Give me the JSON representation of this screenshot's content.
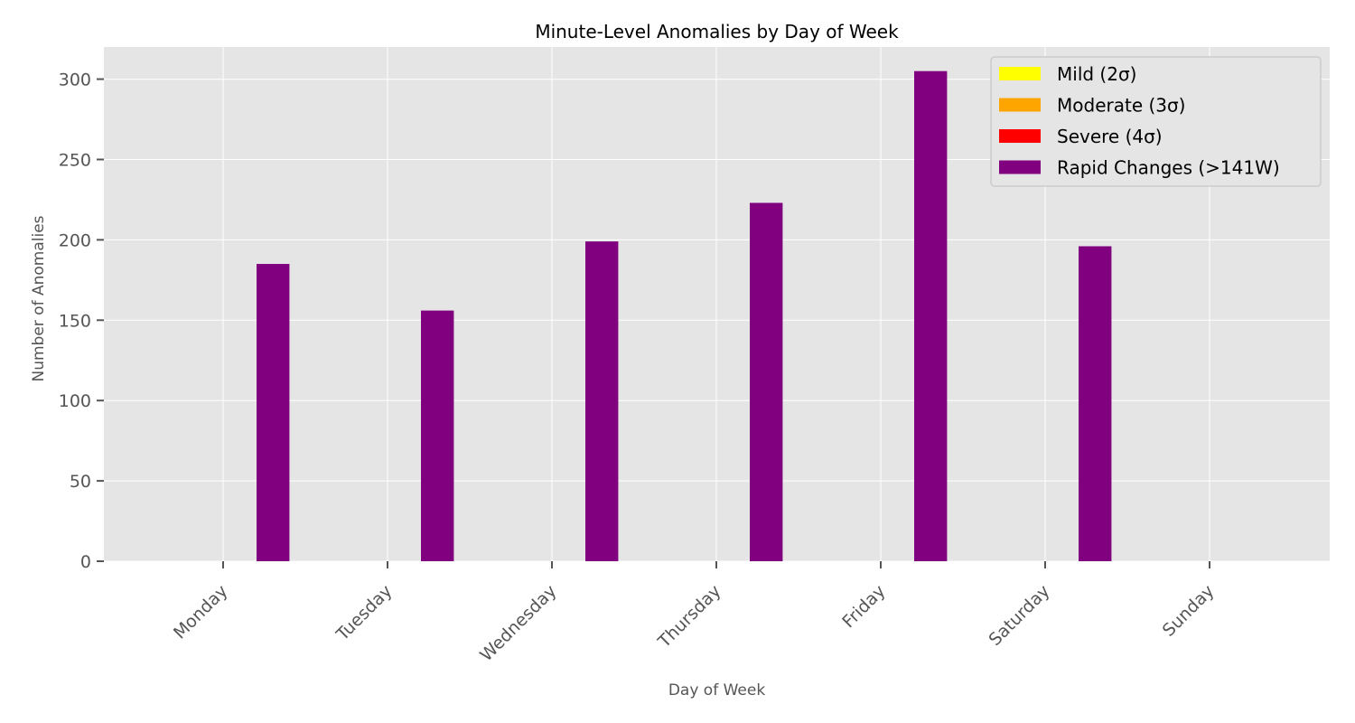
{
  "chart_data": {
    "type": "bar",
    "title": "Minute-Level Anomalies by Day of Week",
    "xlabel": "Day of Week",
    "ylabel": "Number of Anomalies",
    "categories": [
      "Monday",
      "Tuesday",
      "Wednesday",
      "Thursday",
      "Friday",
      "Saturday",
      "Sunday"
    ],
    "series": [
      {
        "name": "Mild (2σ)",
        "color": "#ffff00",
        "values": [
          0,
          0,
          0,
          0,
          0,
          0,
          0
        ]
      },
      {
        "name": "Moderate (3σ)",
        "color": "#ffa500",
        "values": [
          0,
          0,
          0,
          0,
          0,
          0,
          0
        ]
      },
      {
        "name": "Severe (4σ)",
        "color": "#ff0000",
        "values": [
          0,
          0,
          0,
          0,
          0,
          0,
          0
        ]
      },
      {
        "name": "Rapid Changes (>141W)",
        "color": "#800080",
        "values": [
          185,
          156,
          199,
          223,
          305,
          196,
          0
        ]
      }
    ],
    "ylim": [
      0,
      320
    ],
    "yticks": [
      0,
      50,
      100,
      150,
      200,
      250,
      300
    ],
    "grid": true,
    "legend_position": "top-right",
    "background": "#e5e5e5",
    "grid_color": "#ffffff"
  }
}
